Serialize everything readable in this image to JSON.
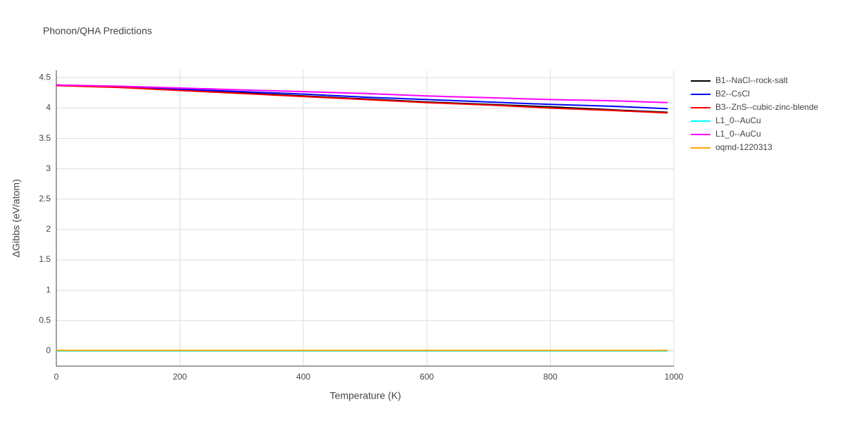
{
  "chart_data": {
    "type": "line",
    "title": "Phonon/QHA Predictions",
    "x_label": "Temperature (K)",
    "y_label": "ΔGibbs (eV/atom)",
    "x": [
      0,
      100,
      200,
      300,
      400,
      500,
      600,
      700,
      800,
      900,
      990
    ],
    "series": [
      {
        "name": "B1--NaCl--rock-salt",
        "color": "#000000",
        "values": [
          4.38,
          4.35,
          4.3,
          4.25,
          4.2,
          4.15,
          4.1,
          4.06,
          4.02,
          3.97,
          3.93
        ]
      },
      {
        "name": "B2--CsCl",
        "color": "#0000ff",
        "values": [
          4.38,
          4.35,
          4.31,
          4.27,
          4.23,
          4.18,
          4.14,
          4.1,
          4.06,
          4.03,
          3.99
        ]
      },
      {
        "name": "B3--ZnS--cubic-zinc-blende",
        "color": "#ff0000",
        "values": [
          4.37,
          4.34,
          4.29,
          4.24,
          4.19,
          4.14,
          4.09,
          4.05,
          4.0,
          3.96,
          3.92
        ]
      },
      {
        "name": "L1_0--AuCu",
        "color": "#00ffff",
        "values": [
          0,
          0,
          0,
          0,
          0,
          0,
          0,
          0,
          0,
          0,
          0
        ]
      },
      {
        "name": "L1_0--AuCu",
        "color": "#ff00ff",
        "values": [
          4.38,
          4.36,
          4.33,
          4.3,
          4.27,
          4.24,
          4.2,
          4.17,
          4.14,
          4.12,
          4.09
        ]
      },
      {
        "name": "oqmd-1220313",
        "color": "#ffa500",
        "values": [
          0.01,
          0.01,
          0.01,
          0.01,
          0.01,
          0.01,
          0.01,
          0.01,
          0.01,
          0.01,
          0.01
        ]
      }
    ],
    "xlim": [
      0,
      1000
    ],
    "xticks": [
      0,
      200,
      400,
      600,
      800,
      1000
    ],
    "ylim": [
      -0.25,
      4.62
    ],
    "yticks": [
      0,
      0.5,
      1,
      1.5,
      2,
      2.5,
      3,
      3.5,
      4,
      4.5
    ],
    "grid": true,
    "legend": "top-right"
  }
}
